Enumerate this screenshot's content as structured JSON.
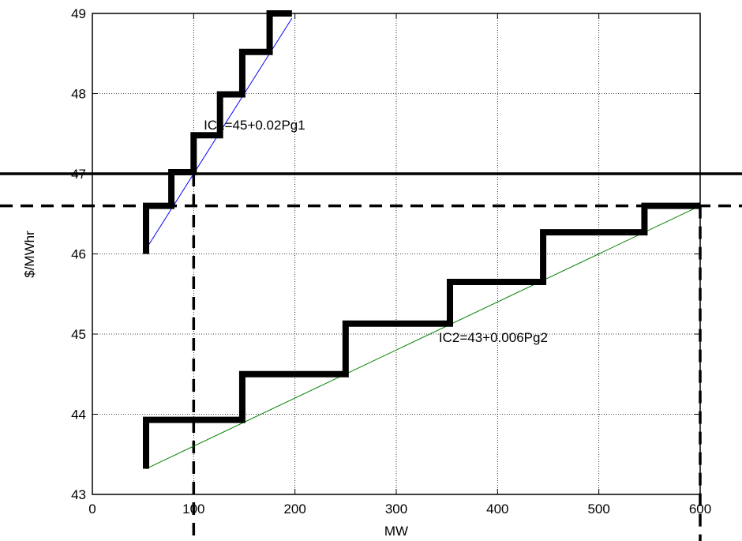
{
  "chart_data": {
    "type": "line",
    "title": "",
    "xlabel": "MW",
    "ylabel": "$/MWhr",
    "xlim": [
      0,
      600
    ],
    "ylim": [
      43,
      49
    ],
    "xticks": [
      0,
      100,
      200,
      300,
      400,
      500,
      600
    ],
    "yticks": [
      43,
      44,
      45,
      46,
      47,
      48,
      49
    ],
    "grid": true,
    "series": [
      {
        "color": "#0000ff",
        "style": "thin",
        "x": [
          53,
          197
        ],
        "y": [
          46.06,
          48.94
        ]
      },
      {
        "color": "#008000",
        "style": "thin",
        "x": [
          53,
          600
        ],
        "y": [
          43.32,
          46.6
        ]
      },
      {
        "color": "#000000",
        "style": "step",
        "x": [
          53,
          53,
          78,
          78,
          100,
          100,
          126,
          126,
          148,
          148,
          175,
          175,
          197
        ],
        "y": [
          46.0,
          46.6,
          46.6,
          47.02,
          47.02,
          47.48,
          47.48,
          47.99,
          47.99,
          48.52,
          48.52,
          49.0,
          49.0
        ]
      },
      {
        "color": "#000000",
        "style": "step",
        "x": [
          53,
          53,
          148,
          148,
          250,
          250,
          353,
          353,
          445,
          445,
          545,
          545,
          600
        ],
        "y": [
          43.32,
          43.93,
          43.93,
          44.5,
          44.5,
          45.13,
          45.13,
          45.65,
          45.65,
          46.27,
          46.27,
          46.6,
          46.6
        ]
      }
    ],
    "reference_lines": [
      {
        "orientation": "horizontal",
        "y": 47.0,
        "style": "solid"
      },
      {
        "orientation": "horizontal",
        "y": 46.6,
        "style": "dashed"
      },
      {
        "orientation": "vertical",
        "x": 100,
        "y_to": 47.0,
        "style": "dashed"
      },
      {
        "orientation": "vertical",
        "x": 600,
        "y_to": 46.6,
        "style": "dashed"
      }
    ],
    "annotations": [
      {
        "text": "IC1=45+0.02Pg1",
        "x": 110,
        "y": 47.55
      },
      {
        "text": "IC2=43+0.006Pg2",
        "x": 342,
        "y": 44.9
      }
    ]
  }
}
